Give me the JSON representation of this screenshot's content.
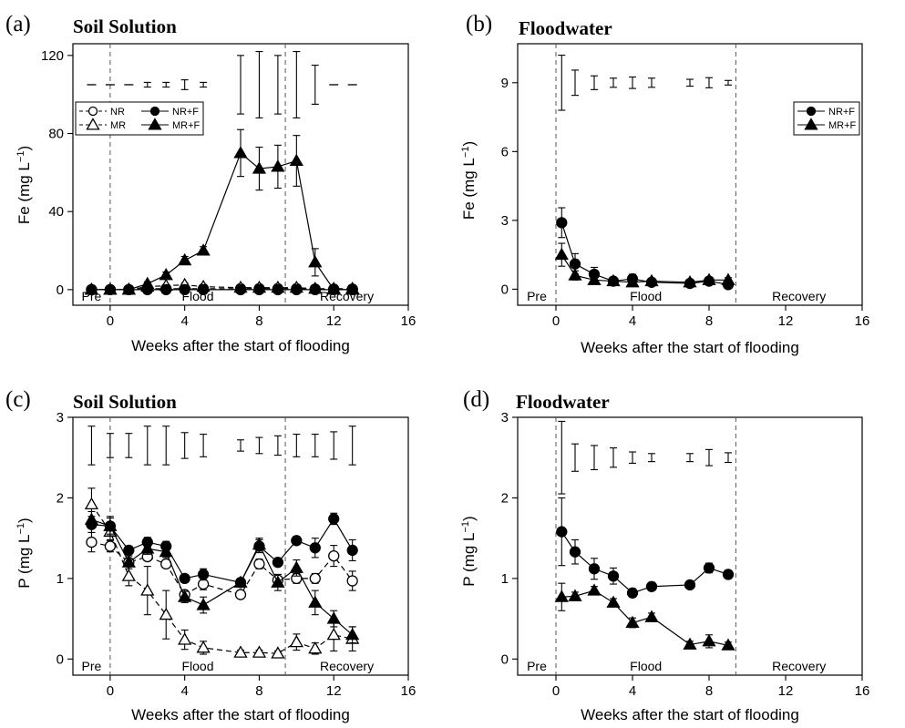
{
  "chart_data": [
    {
      "panel_label": "(a)",
      "title": "Soil Solution",
      "type": "line",
      "xlabel": "Weeks after the start of flooding",
      "ylabel": "Fe (mg L",
      "ylabel_sup": "−1",
      "ylabel_close": ")",
      "xlim": [
        -2,
        16
      ],
      "ylim": [
        -8,
        126
      ],
      "xticks": [
        0,
        4,
        8,
        12,
        16
      ],
      "yticks": [
        0,
        40,
        80,
        120
      ],
      "phase_lines": [
        0,
        9.4
      ],
      "phases": [
        {
          "text": "Pre",
          "x": -1
        },
        {
          "text": "Flood",
          "x": 4.7
        },
        {
          "text": "Recovery",
          "x": 12.7
        }
      ],
      "legend": {
        "position": "upper-left",
        "columns": 2,
        "order": [
          "NR",
          "NR+F",
          "MR",
          "MR+F"
        ]
      },
      "lsd_bars": {
        "y": 105,
        "x": [
          -1,
          0,
          1,
          2,
          3,
          4,
          5,
          7,
          8,
          9,
          10,
          11,
          12,
          13
        ],
        "halfwidths": [
          0.3,
          0.3,
          0.3,
          1.2,
          1.2,
          2.5,
          1.2,
          15,
          17,
          15,
          17,
          10,
          0.3,
          0.3
        ]
      },
      "series": [
        {
          "name": "NR",
          "marker": "circle",
          "filled": false,
          "dashed": true,
          "x": [
            -1,
            0,
            1,
            2,
            3,
            4,
            5,
            7,
            8,
            9,
            10,
            11,
            12,
            13
          ],
          "y": [
            0,
            0,
            0,
            0.5,
            0.5,
            0.5,
            0.5,
            0.5,
            0.5,
            0.5,
            0.5,
            0.3,
            0.3,
            0.3
          ],
          "err": [
            0,
            0,
            0,
            0.3,
            0.3,
            0.3,
            0.3,
            0.3,
            0.3,
            0.3,
            0.3,
            0.2,
            0.2,
            0.2
          ]
        },
        {
          "name": "MR",
          "marker": "triangle",
          "filled": false,
          "dashed": true,
          "x": [
            -1,
            0,
            1,
            2,
            3,
            4,
            5,
            7,
            8,
            9,
            10,
            11,
            12,
            13
          ],
          "y": [
            0,
            0,
            0,
            1.5,
            2,
            2.5,
            1.5,
            1,
            1,
            1,
            1,
            0.5,
            0.5,
            0.5
          ],
          "err": [
            0,
            0,
            0,
            0.5,
            0.5,
            0.8,
            0.5,
            0.3,
            0.3,
            0.3,
            0.3,
            0.2,
            0.2,
            0.2
          ]
        },
        {
          "name": "NR+F",
          "marker": "circle",
          "filled": true,
          "dashed": false,
          "x": [
            -1,
            0,
            1,
            2,
            3,
            4,
            5,
            7,
            8,
            9,
            10,
            11,
            12,
            13
          ],
          "y": [
            0,
            0,
            0,
            0,
            0,
            0,
            0,
            0,
            0,
            0,
            0,
            0,
            0,
            0
          ],
          "err": [
            0,
            0,
            0,
            0,
            0,
            0,
            0,
            0,
            0,
            0,
            0,
            0,
            0,
            0
          ]
        },
        {
          "name": "MR+F",
          "marker": "triangle",
          "filled": true,
          "dashed": false,
          "x": [
            -1,
            0,
            1,
            2,
            3,
            4,
            5,
            7,
            8,
            9,
            10,
            11,
            12,
            13
          ],
          "y": [
            0,
            0,
            0,
            3,
            7.5,
            15,
            20,
            70,
            62,
            63,
            66,
            14,
            0,
            0
          ],
          "err": [
            0,
            0,
            0,
            1,
            1.5,
            2,
            2,
            12,
            11,
            11,
            13,
            7,
            0,
            0
          ]
        }
      ]
    },
    {
      "panel_label": "(b)",
      "title": "Floodwater",
      "type": "line",
      "xlabel": "Weeks after the start of flooding",
      "ylabel": "Fe (mg L",
      "ylabel_sup": "−1",
      "ylabel_close": ")",
      "xlim": [
        -2,
        16
      ],
      "ylim": [
        -0.7,
        10.7
      ],
      "xticks": [
        0,
        4,
        8,
        12,
        16
      ],
      "yticks": [
        0,
        3,
        6,
        9
      ],
      "phase_lines": [
        0,
        9.4
      ],
      "phases": [
        {
          "text": "Pre",
          "x": -1
        },
        {
          "text": "Flood",
          "x": 4.7
        },
        {
          "text": "Recovery",
          "x": 12.7
        }
      ],
      "legend": {
        "position": "upper-right",
        "columns": 1,
        "order": [
          "NR+F",
          "MR+F"
        ]
      },
      "lsd_bars": {
        "y": 9,
        "x": [
          0.3,
          1,
          2,
          3,
          4,
          5,
          7,
          8,
          9
        ],
        "halfwidths": [
          1.2,
          0.55,
          0.3,
          0.2,
          0.25,
          0.2,
          0.15,
          0.22,
          0.1
        ]
      },
      "series": [
        {
          "name": "NR+F",
          "marker": "circle",
          "filled": true,
          "dashed": false,
          "x": [
            0.3,
            1,
            2,
            3,
            4,
            5,
            7,
            8,
            9
          ],
          "y": [
            2.9,
            1.1,
            0.65,
            0.35,
            0.45,
            0.3,
            0.25,
            0.35,
            0.2
          ],
          "err": [
            0.65,
            0.45,
            0.3,
            0.15,
            0.2,
            0.1,
            0.1,
            0.15,
            0.1
          ]
        },
        {
          "name": "MR+F",
          "marker": "triangle",
          "filled": true,
          "dashed": false,
          "x": [
            0.3,
            1,
            2,
            3,
            4,
            5,
            7,
            8,
            9
          ],
          "y": [
            1.5,
            0.6,
            0.4,
            0.35,
            0.3,
            0.35,
            0.3,
            0.4,
            0.4
          ],
          "err": [
            0.5,
            0.2,
            0.15,
            0.1,
            0.1,
            0.1,
            0.1,
            0.1,
            0.1
          ]
        }
      ]
    },
    {
      "panel_label": "(c)",
      "title": "Soil Solution",
      "type": "line",
      "xlabel": "Weeks after the start of flooding",
      "ylabel": "P (mg L",
      "ylabel_sup": "−1",
      "ylabel_close": ")",
      "xlim": [
        -2,
        16
      ],
      "ylim": [
        -0.2,
        3
      ],
      "xticks": [
        0,
        4,
        8,
        12,
        16
      ],
      "yticks": [
        0,
        1,
        2,
        3
      ],
      "phase_lines": [
        0,
        9.4
      ],
      "phases": [
        {
          "text": "Pre",
          "x": -1
        },
        {
          "text": "Flood",
          "x": 4.7
        },
        {
          "text": "Recovery",
          "x": 12.7
        }
      ],
      "legend": null,
      "lsd_bars": {
        "y": 2.65,
        "x": [
          -1,
          0,
          1,
          2,
          3,
          4,
          5,
          7,
          8,
          9,
          10,
          11,
          12,
          13
        ],
        "halfwidths": [
          0.24,
          0.15,
          0.15,
          0.24,
          0.24,
          0.16,
          0.14,
          0.07,
          0.1,
          0.12,
          0.14,
          0.14,
          0.17,
          0.24
        ]
      },
      "series": [
        {
          "name": "NR",
          "marker": "circle",
          "filled": false,
          "dashed": true,
          "x": [
            -1,
            0,
            1,
            2,
            3,
            4,
            5,
            7,
            8,
            9,
            10,
            11,
            12,
            13
          ],
          "y": [
            1.45,
            1.4,
            1.2,
            1.27,
            1.18,
            0.8,
            0.93,
            0.8,
            1.18,
            0.98,
            1.0,
            1.0,
            1.28,
            0.97
          ],
          "err": [
            0.12,
            0.07,
            0.05,
            0.05,
            0.05,
            0.05,
            0.07,
            0.05,
            0.06,
            0.07,
            0.06,
            0.06,
            0.13,
            0.12
          ]
        },
        {
          "name": "MR",
          "marker": "triangle",
          "filled": false,
          "dashed": true,
          "x": [
            -1,
            0,
            1,
            2,
            3,
            4,
            5,
            7,
            8,
            9,
            10,
            11,
            12,
            13
          ],
          "y": [
            1.92,
            1.58,
            1.03,
            0.85,
            0.55,
            0.24,
            0.14,
            0.08,
            0.08,
            0.07,
            0.21,
            0.13,
            0.3,
            0.25
          ],
          "err": [
            0.2,
            0.1,
            0.12,
            0.3,
            0.3,
            0.12,
            0.08,
            0.03,
            0.03,
            0.03,
            0.1,
            0.07,
            0.2,
            0.15
          ]
        },
        {
          "name": "NR+F",
          "marker": "circle",
          "filled": true,
          "dashed": false,
          "x": [
            -1,
            0,
            1,
            2,
            3,
            4,
            5,
            7,
            8,
            9,
            10,
            11,
            12,
            13
          ],
          "y": [
            1.67,
            1.65,
            1.35,
            1.45,
            1.4,
            1.0,
            1.05,
            0.95,
            1.4,
            1.2,
            1.47,
            1.38,
            1.74,
            1.35
          ],
          "err": [
            0.1,
            0.12,
            0.05,
            0.06,
            0.06,
            0.05,
            0.07,
            0.05,
            0.08,
            0.05,
            0.05,
            0.12,
            0.07,
            0.13
          ]
        },
        {
          "name": "MR+F",
          "marker": "triangle",
          "filled": true,
          "dashed": false,
          "x": [
            -1,
            0,
            1,
            2,
            3,
            4,
            5,
            7,
            8,
            9,
            10,
            11,
            12,
            13
          ],
          "y": [
            1.73,
            1.65,
            1.2,
            1.37,
            1.33,
            0.77,
            0.67,
            0.95,
            1.42,
            0.95,
            1.13,
            0.7,
            0.5,
            0.3
          ],
          "err": [
            0.1,
            0.1,
            0.08,
            0.07,
            0.07,
            0.07,
            0.1,
            0.04,
            0.08,
            0.1,
            0.1,
            0.15,
            0.1,
            0.1
          ]
        }
      ]
    },
    {
      "panel_label": "(d)",
      "title": "Floodwater",
      "type": "line",
      "xlabel": "Weeks after the start of flooding",
      "ylabel": "P (mg L",
      "ylabel_sup": "−1",
      "ylabel_close": ")",
      "xlim": [
        -2,
        16
      ],
      "ylim": [
        -0.2,
        3
      ],
      "xticks": [
        0,
        4,
        8,
        12,
        16
      ],
      "yticks": [
        0,
        1,
        2,
        3
      ],
      "phase_lines": [
        0,
        9.4
      ],
      "phases": [
        {
          "text": "Pre",
          "x": -1
        },
        {
          "text": "Flood",
          "x": 4.7
        },
        {
          "text": "Recovery",
          "x": 12.7
        }
      ],
      "legend": null,
      "lsd_bars": {
        "y": 2.5,
        "x": [
          0.3,
          1,
          2,
          3,
          4,
          5,
          7,
          8,
          9
        ],
        "halfwidths": [
          0.45,
          0.17,
          0.15,
          0.12,
          0.07,
          0.05,
          0.05,
          0.1,
          0.06
        ]
      },
      "series": [
        {
          "name": "NR+F",
          "marker": "circle",
          "filled": true,
          "dashed": false,
          "x": [
            0.3,
            1,
            2,
            3,
            4,
            5,
            7,
            8,
            9
          ],
          "y": [
            1.58,
            1.33,
            1.12,
            1.03,
            0.82,
            0.9,
            0.92,
            1.13,
            1.05
          ],
          "err": [
            0.42,
            0.15,
            0.13,
            0.1,
            0.05,
            0.05,
            0.04,
            0.06,
            0.05
          ]
        },
        {
          "name": "MR+F",
          "marker": "triangle",
          "filled": true,
          "dashed": false,
          "x": [
            0.3,
            1,
            2,
            3,
            4,
            5,
            7,
            8,
            9
          ],
          "y": [
            0.77,
            0.78,
            0.85,
            0.7,
            0.45,
            0.52,
            0.18,
            0.22,
            0.17
          ],
          "err": [
            0.17,
            0.05,
            0.05,
            0.05,
            0.06,
            0.05,
            0.04,
            0.08,
            0.04
          ]
        }
      ]
    }
  ]
}
